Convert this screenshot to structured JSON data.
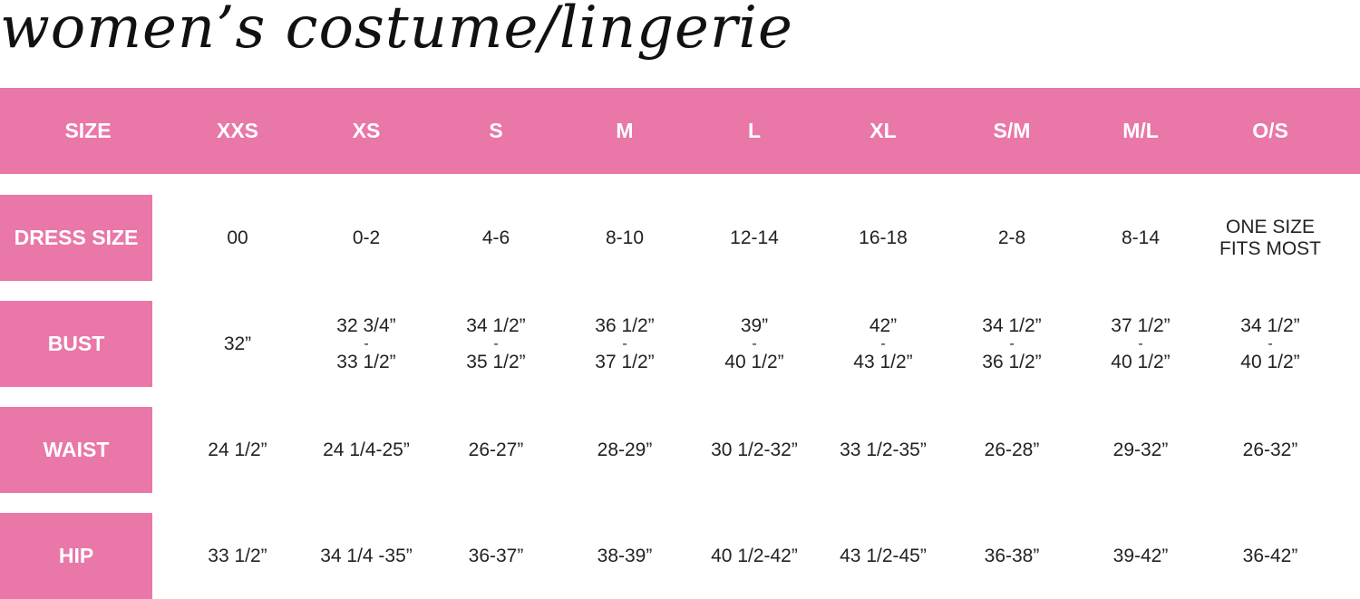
{
  "title": "women’s costume/lingerie",
  "colors": {
    "accent": "#e977a8",
    "header_text": "#ffffff",
    "body_text": "#222222"
  },
  "header": [
    "SIZE",
    "XXS",
    "XS",
    "S",
    "M",
    "L",
    "XL",
    "S/M",
    "M/L",
    "O/S"
  ],
  "rows": [
    {
      "label": "DRESS SIZE",
      "cells": [
        [
          "00"
        ],
        [
          "0-2"
        ],
        [
          "4-6"
        ],
        [
          "8-10"
        ],
        [
          "12-14"
        ],
        [
          "16-18"
        ],
        [
          "2-8"
        ],
        [
          "8-14"
        ],
        [
          "ONE SIZE",
          "FITS MOST"
        ]
      ]
    },
    {
      "label": "BUST",
      "cells": [
        [
          "32”"
        ],
        [
          "32 3/4”",
          "-",
          "33 1/2”"
        ],
        [
          "34 1/2”",
          "-",
          "35 1/2”"
        ],
        [
          "36 1/2”",
          "-",
          "37 1/2”"
        ],
        [
          "39”",
          "-",
          "40 1/2”"
        ],
        [
          "42”",
          "-",
          "43 1/2”"
        ],
        [
          "34 1/2”",
          "-",
          "36 1/2”"
        ],
        [
          "37 1/2”",
          "-",
          "40 1/2”"
        ],
        [
          "34 1/2”",
          "-",
          "40 1/2”"
        ]
      ]
    },
    {
      "label": "WAIST",
      "cells": [
        [
          "24 1/2”"
        ],
        [
          "24 1/4-25”"
        ],
        [
          "26-27”"
        ],
        [
          "28-29”"
        ],
        [
          "30 1/2-32”"
        ],
        [
          "33 1/2-35”"
        ],
        [
          "26-28”"
        ],
        [
          "29-32”"
        ],
        [
          "26-32”"
        ]
      ]
    },
    {
      "label": "HIP",
      "cells": [
        [
          "33 1/2”"
        ],
        [
          "34 1/4 -35”"
        ],
        [
          "36-37”"
        ],
        [
          "38-39”"
        ],
        [
          "40 1/2-42”"
        ],
        [
          "43 1/2-45”"
        ],
        [
          "36-38”"
        ],
        [
          "39-42”"
        ],
        [
          "36-42”"
        ]
      ]
    }
  ]
}
